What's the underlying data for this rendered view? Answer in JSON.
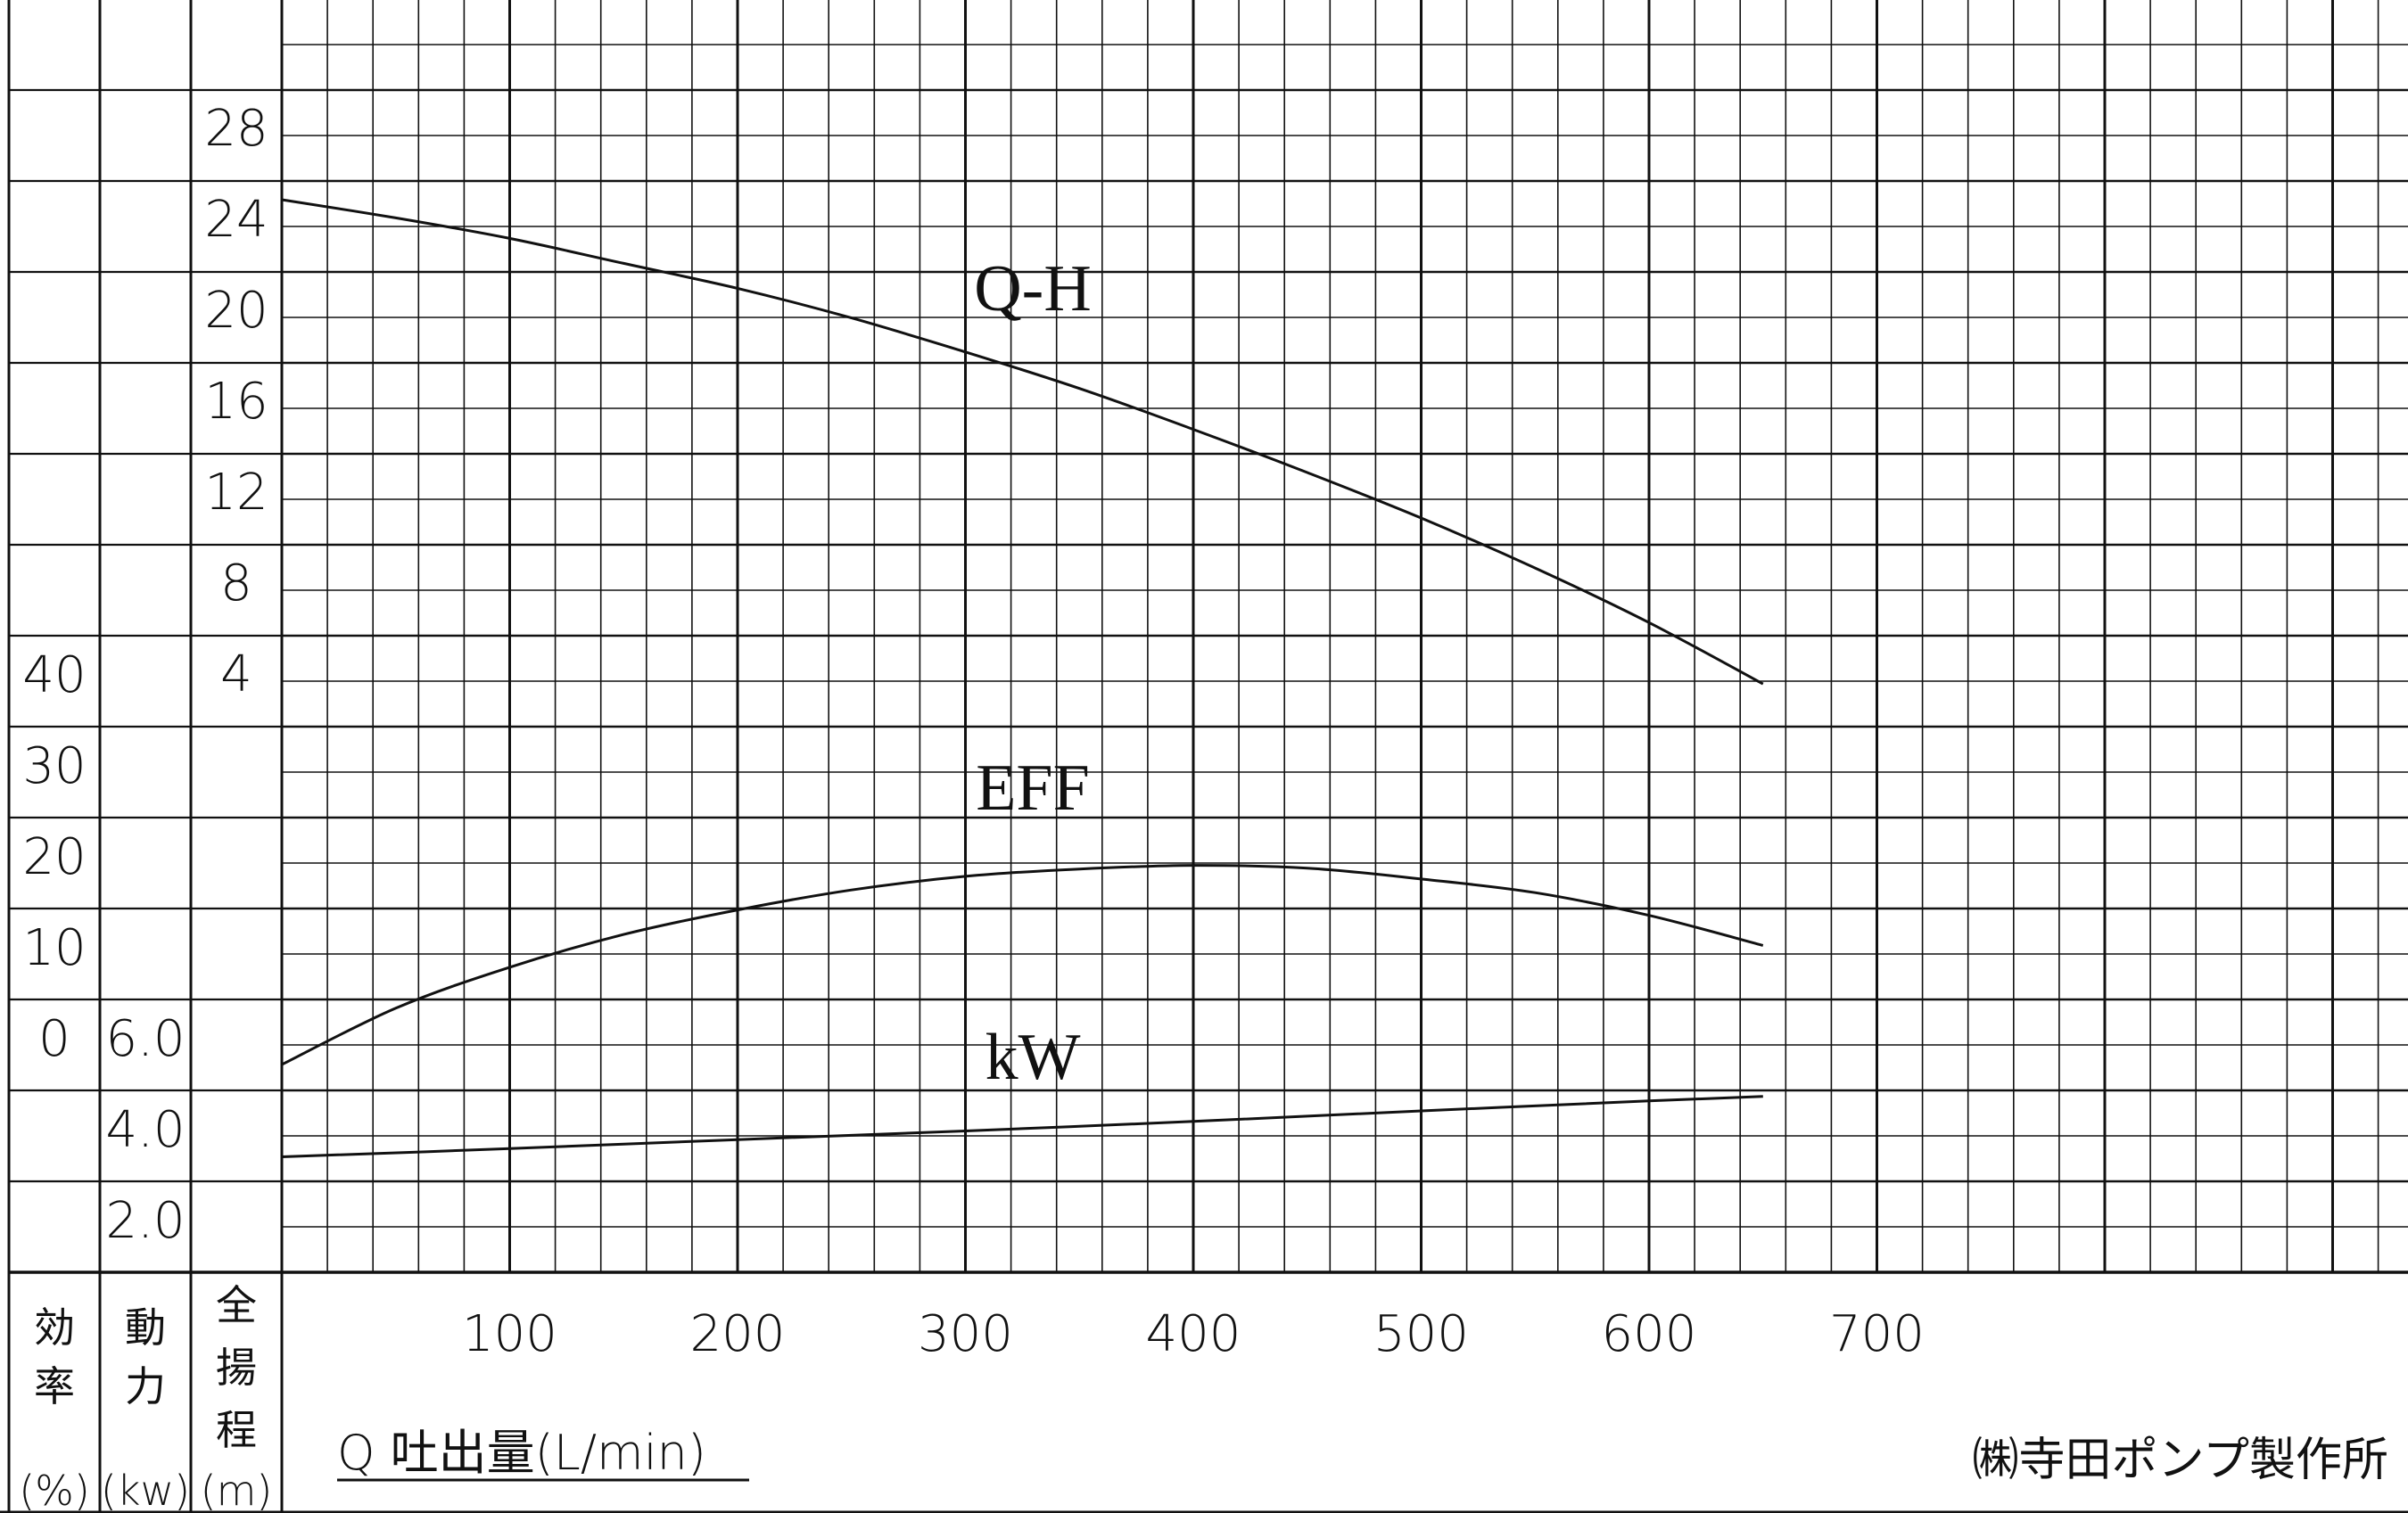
{
  "chart_data": {
    "type": "line",
    "xlabel": "Q 吐出量(L/min)",
    "xlim": [
      0,
      900
    ],
    "x_ticks": [
      100,
      200,
      300,
      400,
      500,
      600,
      700
    ],
    "axes": [
      {
        "id": "eff",
        "head_chars": [
          "効",
          "率"
        ],
        "unit": "(%)",
        "tick_labels": [
          "0",
          "10",
          "20",
          "30",
          "40"
        ],
        "range": [
          -10,
          70
        ]
      },
      {
        "id": "kw",
        "head_chars": [
          "動",
          "力"
        ],
        "unit": "(kw)",
        "tick_labels": [
          "2.0",
          "4.0",
          "6.0"
        ],
        "range": [
          0,
          6
        ]
      },
      {
        "id": "head",
        "head_chars": [
          "全",
          "揚",
          "程"
        ],
        "unit": "(m)",
        "tick_labels": [
          "4",
          "8",
          "12",
          "16",
          "20",
          "24",
          "28"
        ],
        "range": [
          -16,
          40
        ]
      }
    ],
    "series": [
      {
        "name": "Q-H",
        "axis": "head",
        "x": [
          0,
          50,
          100,
          150,
          200,
          250,
          300,
          350,
          400,
          450,
          500,
          550,
          600,
          650
        ],
        "y": [
          26.0,
          25.2,
          24.3,
          23.2,
          22.1,
          20.8,
          19.3,
          17.7,
          15.9,
          14.0,
          12.0,
          9.8,
          7.4,
          4.7
        ]
      },
      {
        "name": "EFF",
        "axis": "eff",
        "x": [
          0,
          50,
          100,
          150,
          200,
          250,
          300,
          350,
          400,
          450,
          500,
          550,
          600,
          650
        ],
        "y": [
          0.0,
          6.2,
          10.7,
          14.3,
          17.0,
          19.2,
          20.7,
          21.5,
          21.9,
          21.6,
          20.4,
          18.9,
          16.4,
          13.1
        ]
      },
      {
        "name": "kW",
        "axis": "kw",
        "x": [
          0,
          100,
          200,
          300,
          400,
          500,
          600,
          650
        ],
        "y": [
          3.97,
          4.15,
          4.35,
          4.54,
          4.75,
          4.98,
          5.2,
          5.3
        ]
      }
    ]
  },
  "company": "㈱寺田ポンプ製作所"
}
